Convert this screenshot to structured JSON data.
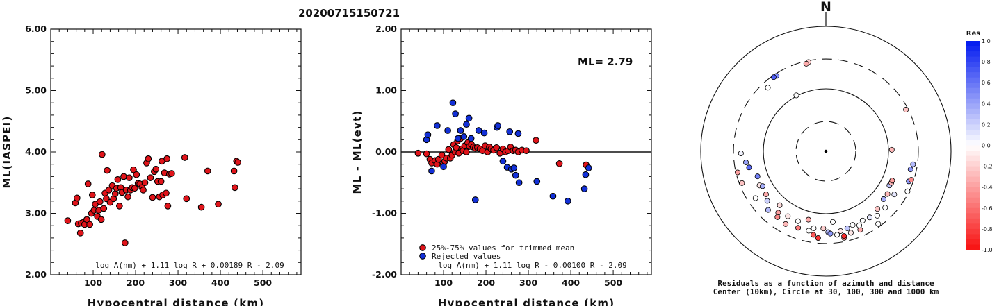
{
  "title": "20200715150721",
  "colors": {
    "trimmed": "#e0141a",
    "rejected": "#1230d8",
    "axis": "#111111",
    "res_pos": "#0018f0",
    "res_neg": "#f81010"
  },
  "chart_data": [
    {
      "type": "scatter",
      "id": "ml_vs_distance",
      "xlabel": "Hypocentral distance (km)",
      "ylabel": "ML(IASPEI)",
      "xlim": [
        0,
        590
      ],
      "ylim": [
        2.0,
        6.0
      ],
      "xticks": [
        "100",
        "200",
        "300",
        "400",
        "500"
      ],
      "yticks": [
        "2.00",
        "3.00",
        "4.00",
        "5.00",
        "6.00"
      ],
      "formula": "log A(nm) + 1.11 log R + 0.00189 R - 2.09",
      "series": [
        {
          "points": [
            [
              40,
              2.88
            ],
            [
              58,
              3.17
            ],
            [
              62,
              3.25
            ],
            [
              65,
              2.83
            ],
            [
              70,
              2.68
            ],
            [
              72,
              2.84
            ],
            [
              78,
              2.86
            ],
            [
              80,
              2.82
            ],
            [
              85,
              2.9
            ],
            [
              88,
              3.48
            ],
            [
              92,
              2.82
            ],
            [
              96,
              3.0
            ],
            [
              98,
              3.3
            ],
            [
              102,
              3.05
            ],
            [
              105,
              3.15
            ],
            [
              110,
              2.95
            ],
            [
              113,
              3.05
            ],
            [
              116,
              3.19
            ],
            [
              119,
              2.9
            ],
            [
              121,
              3.96
            ],
            [
              125,
              3.08
            ],
            [
              128,
              3.33
            ],
            [
              131,
              3.24
            ],
            [
              133,
              3.7
            ],
            [
              137,
              3.38
            ],
            [
              140,
              3.18
            ],
            [
              145,
              3.45
            ],
            [
              148,
              3.24
            ],
            [
              152,
              3.32
            ],
            [
              155,
              3.41
            ],
            [
              158,
              3.55
            ],
            [
              162,
              3.12
            ],
            [
              165,
              3.42
            ],
            [
              168,
              3.34
            ],
            [
              172,
              3.6
            ],
            [
              175,
              2.52
            ],
            [
              178,
              3.38
            ],
            [
              182,
              3.27
            ],
            [
              185,
              3.58
            ],
            [
              188,
              3.38
            ],
            [
              192,
              3.42
            ],
            [
              195,
              3.71
            ],
            [
              198,
              3.41
            ],
            [
              202,
              3.63
            ],
            [
              206,
              3.49
            ],
            [
              210,
              3.48
            ],
            [
              215,
              3.42
            ],
            [
              218,
              3.38
            ],
            [
              222,
              3.5
            ],
            [
              226,
              3.82
            ],
            [
              230,
              3.89
            ],
            [
              235,
              3.58
            ],
            [
              240,
              3.26
            ],
            [
              244,
              3.68
            ],
            [
              248,
              3.72
            ],
            [
              252,
              3.52
            ],
            [
              256,
              3.27
            ],
            [
              260,
              3.52
            ],
            [
              262,
              3.85
            ],
            [
              264,
              3.3
            ],
            [
              268,
              3.66
            ],
            [
              272,
              3.33
            ],
            [
              274,
              3.89
            ],
            [
              276,
              3.12
            ],
            [
              280,
              3.64
            ],
            [
              285,
              3.65
            ],
            [
              316,
              3.91
            ],
            [
              320,
              3.24
            ],
            [
              355,
              3.1
            ],
            [
              370,
              3.69
            ],
            [
              395,
              3.15
            ],
            [
              432,
              3.69
            ],
            [
              434,
              3.42
            ],
            [
              438,
              3.85
            ],
            [
              441,
              3.83
            ]
          ]
        }
      ]
    },
    {
      "type": "scatter",
      "id": "residual_vs_distance",
      "xlabel": "Hypocentral distance (km)",
      "ylabel": "ML - ML(evt)",
      "xlim": [
        0,
        590
      ],
      "ylim": [
        -2.0,
        2.0
      ],
      "xticks": [
        "100",
        "200",
        "300",
        "400",
        "500"
      ],
      "yticks": [
        "-2.00",
        "-1.00",
        "0.00",
        "1.00",
        "2.00"
      ],
      "annotation": "ML= 2.79",
      "formula": "log A(nm) + 1.11 log R - 0.00100 R - 2.09",
      "series": [
        {
          "name": "25%-75% values for trimmed mean",
          "points": [
            [
              40,
              -0.02
            ],
            [
              60,
              -0.03
            ],
            [
              68,
              -0.12
            ],
            [
              72,
              -0.18
            ],
            [
              80,
              -0.14
            ],
            [
              85,
              -0.2
            ],
            [
              88,
              -0.12
            ],
            [
              96,
              -0.05
            ],
            [
              100,
              -0.19
            ],
            [
              103,
              -0.15
            ],
            [
              107,
              -0.1
            ],
            [
              112,
              0.04
            ],
            [
              116,
              -0.1
            ],
            [
              120,
              -0.05
            ],
            [
              124,
              0.12
            ],
            [
              127,
              0.0
            ],
            [
              130,
              0.07
            ],
            [
              133,
              0.18
            ],
            [
              136,
              -0.02
            ],
            [
              140,
              0.22
            ],
            [
              143,
              0.05
            ],
            [
              146,
              0.02
            ],
            [
              150,
              0.1
            ],
            [
              154,
              0.0
            ],
            [
              157,
              0.15
            ],
            [
              161,
              0.09
            ],
            [
              166,
              0.12
            ],
            [
              170,
              0.08
            ],
            [
              175,
              0.06
            ],
            [
              180,
              0.07
            ],
            [
              186,
              0.05
            ],
            [
              192,
              0.02
            ],
            [
              198,
              0.1
            ],
            [
              204,
              0.0
            ],
            [
              208,
              0.08
            ],
            [
              212,
              0.05
            ],
            [
              218,
              0.03
            ],
            [
              225,
              0.07
            ],
            [
              233,
              -0.02
            ],
            [
              240,
              0.05
            ],
            [
              246,
              0.0
            ],
            [
              252,
              0.02
            ],
            [
              258,
              0.08
            ],
            [
              264,
              0.02
            ],
            [
              270,
              0.03
            ],
            [
              276,
              0.0
            ],
            [
              285,
              0.03
            ],
            [
              295,
              0.02
            ],
            [
              318,
              0.19
            ],
            [
              373,
              -0.19
            ],
            [
              436,
              -0.21
            ]
          ]
        },
        {
          "name": "Rejected values",
          "points": [
            [
              60,
              0.2
            ],
            [
              63,
              0.28
            ],
            [
              72,
              -0.31
            ],
            [
              85,
              0.43
            ],
            [
              100,
              -0.24
            ],
            [
              110,
              0.35
            ],
            [
              122,
              0.8
            ],
            [
              128,
              0.62
            ],
            [
              134,
              0.22
            ],
            [
              140,
              0.35
            ],
            [
              148,
              0.25
            ],
            [
              154,
              0.45
            ],
            [
              160,
              0.55
            ],
            [
              165,
              0.22
            ],
            [
              175,
              -0.78
            ],
            [
              183,
              0.35
            ],
            [
              196,
              0.31
            ],
            [
              226,
              0.4
            ],
            [
              228,
              0.43
            ],
            [
              240,
              -0.15
            ],
            [
              250,
              -0.25
            ],
            [
              256,
              0.33
            ],
            [
              260,
              -0.28
            ],
            [
              266,
              -0.26
            ],
            [
              270,
              -0.38
            ],
            [
              276,
              0.3
            ],
            [
              278,
              -0.5
            ],
            [
              320,
              -0.48
            ],
            [
              358,
              -0.72
            ],
            [
              393,
              -0.8
            ],
            [
              432,
              -0.6
            ],
            [
              435,
              -0.37
            ],
            [
              442,
              -0.26
            ]
          ]
        }
      ],
      "legend_position": "bottom-left"
    },
    {
      "type": "polar_scatter",
      "id": "residual_azimuth",
      "north_label": "N",
      "caption_line1": "Residuals as a function of azimuth and distance",
      "caption_line2": "Center (10km), Circle at 30, 100, 300 and 1000 km",
      "rings_km": [
        30,
        100,
        300,
        1000
      ],
      "colorbar": {
        "title": "Res",
        "ticks": [
          "1.0",
          "0.8",
          "0.6",
          "0.4",
          "0.2",
          "0.0",
          "-0.2",
          "-0.4",
          "-0.6",
          "-0.8",
          "-1.0"
        ],
        "range": [
          -1.0,
          1.0
        ]
      },
      "points": [
        {
          "az": -11.0,
          "dist_km": 285,
          "res": -0.2
        },
        {
          "az": -12.6,
          "dist_km": 273,
          "res": -0.35
        },
        {
          "az": -33.1,
          "dist_km": 276,
          "res": 0.5
        },
        {
          "az": -35.1,
          "dist_km": 282,
          "res": 0.7
        },
        {
          "az": -42.3,
          "dist_km": 239,
          "res": 0.0
        },
        {
          "az": -27.8,
          "dist_km": 103,
          "res": 0.0
        },
        {
          "az": 62.5,
          "dist_km": 277,
          "res": -0.25
        },
        {
          "az": 88.7,
          "dist_km": 113,
          "res": -0.3
        },
        {
          "az": -91.4,
          "dist_km": 228,
          "res": 0.05
        },
        {
          "az": -97.9,
          "dist_km": 195,
          "res": 0.4
        },
        {
          "az": -101.9,
          "dist_km": 180,
          "res": 0.65
        },
        {
          "az": -103.5,
          "dist_km": 283,
          "res": -0.4
        },
        {
          "az": -110.8,
          "dist_km": 272,
          "res": -0.25
        },
        {
          "az": -110.2,
          "dist_km": 146,
          "res": 0.55
        },
        {
          "az": -117.3,
          "dist_km": 156,
          "res": -0.1
        },
        {
          "az": -118.9,
          "dist_km": 143,
          "res": 0.35
        },
        {
          "az": -123.7,
          "dist_km": 225,
          "res": 0.0
        },
        {
          "az": -125.8,
          "dist_km": 151,
          "res": -0.35
        },
        {
          "az": -130.3,
          "dist_km": 169,
          "res": 0.2
        },
        {
          "az": -135.5,
          "dist_km": 208,
          "res": 0.3
        },
        {
          "az": -139.5,
          "dist_km": 137,
          "res": -0.15
        },
        {
          "az": -142.2,
          "dist_km": 175,
          "res": -0.4
        },
        {
          "az": -143.7,
          "dist_km": 203,
          "res": -0.5
        },
        {
          "az": -149.7,
          "dist_km": 160,
          "res": -0.1
        },
        {
          "az": -151.1,
          "dist_km": 214,
          "res": -0.3
        },
        {
          "az": -158.3,
          "dist_km": 160,
          "res": 0.0
        },
        {
          "az": -160.1,
          "dist_km": 201,
          "res": -0.55
        },
        {
          "az": -165.7,
          "dist_km": 135,
          "res": -0.35
        },
        {
          "az": -167.8,
          "dist_km": 200,
          "res": 0.0
        },
        {
          "az": -171.5,
          "dist_km": 225,
          "res": -0.7
        },
        {
          "az": -174.9,
          "dist_km": 248,
          "res": -0.85
        },
        {
          "az": -171.0,
          "dist_km": 177,
          "res": 0.0
        },
        {
          "az": -178.1,
          "dist_km": 172,
          "res": -0.2
        },
        {
          "az": 178.4,
          "dist_km": 198,
          "res": 0.3
        },
        {
          "az": 176.9,
          "dist_km": 209,
          "res": 0.45
        },
        {
          "az": 174.4,
          "dist_km": 137,
          "res": 0.0
        },
        {
          "az": 172.4,
          "dist_km": 223,
          "res": 0.0
        },
        {
          "az": 169.6,
          "dist_km": 199,
          "res": -0.1
        },
        {
          "az": 168.1,
          "dist_km": 261,
          "res": -0.5
        },
        {
          "az": 167.9,
          "dist_km": 244,
          "res": -0.9
        },
        {
          "az": 164.5,
          "dist_km": 190,
          "res": 0.25
        },
        {
          "az": 163.0,
          "dist_km": 231,
          "res": -0.1
        },
        {
          "az": 160.1,
          "dist_km": 180,
          "res": 0.0
        },
        {
          "az": 156.4,
          "dist_km": 235,
          "res": -0.35
        },
        {
          "az": 155.8,
          "dist_km": 200,
          "res": 0.0
        },
        {
          "az": 152.1,
          "dist_km": 180,
          "res": 0.0
        },
        {
          "az": 146.5,
          "dist_km": 186,
          "res": 0.1
        },
        {
          "az": 144.3,
          "dist_km": 270,
          "res": 0.0
        },
        {
          "az": 141.5,
          "dist_km": 208,
          "res": 0.0
        },
        {
          "az": 138.3,
          "dist_km": 173,
          "res": -0.25
        },
        {
          "az": 133.6,
          "dist_km": 203,
          "res": 0.0
        },
        {
          "az": 129.7,
          "dist_km": 158,
          "res": 0.35
        },
        {
          "az": 124.8,
          "dist_km": 158,
          "res": -0.3
        },
        {
          "az": 122.3,
          "dist_km": 196,
          "res": 0.1
        },
        {
          "az": 118.3,
          "dist_km": 142,
          "res": 0.25
        },
        {
          "az": 115.8,
          "dist_km": 145,
          "res": -0.3
        },
        {
          "az": 113.9,
          "dist_km": 144,
          "res": -0.4
        },
        {
          "az": 116.2,
          "dist_km": 284,
          "res": 0.0
        },
        {
          "az": 110.0,
          "dist_km": 257,
          "res": 0.45
        },
        {
          "az": 108.5,
          "dist_km": 275,
          "res": -0.5
        },
        {
          "az": 102.1,
          "dist_km": 242,
          "res": 0.45
        },
        {
          "az": 98.5,
          "dist_km": 256,
          "res": 0.3
        }
      ]
    }
  ]
}
